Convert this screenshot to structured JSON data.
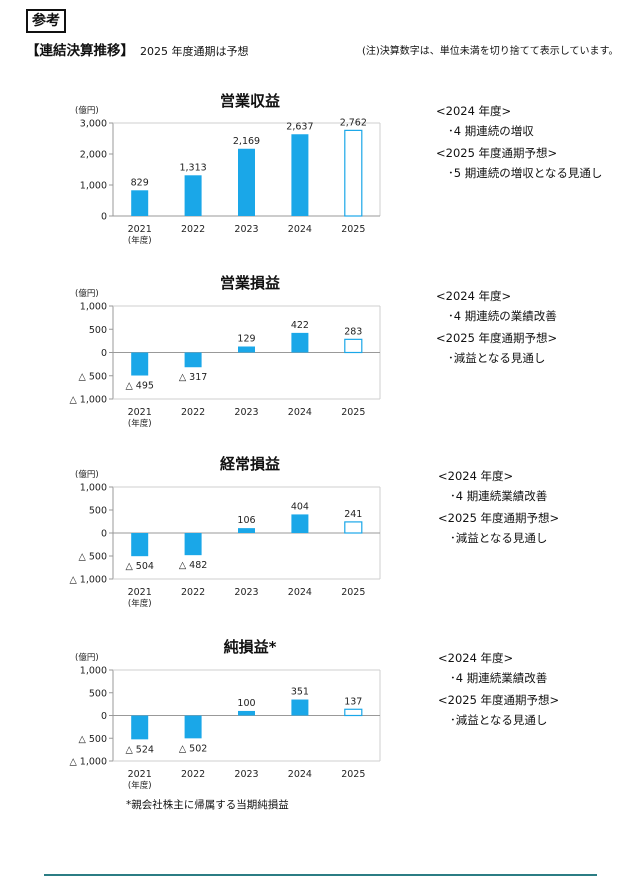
{
  "header": {
    "ref_label": "参考",
    "title": "【連結決算推移】",
    "subtitle": "2025 年度通期は予想",
    "note": "(注)決算数字は、単位未満を切り捨てて表示しています。"
  },
  "colors": {
    "bar": "#1aa7e8",
    "forecast_outline": "#1aa7e8",
    "axis": "#999999",
    "rule": "#2b7d84"
  },
  "chart_data": [
    {
      "type": "bar",
      "title": "営業収益",
      "unit": "(億円)",
      "categories": [
        "2021",
        "2022",
        "2023",
        "2024",
        "2025"
      ],
      "x_unit": "(年度)",
      "values": [
        829,
        1313,
        2169,
        2637,
        2762
      ],
      "value_labels": [
        "829",
        "1,313",
        "2,169",
        "2,637",
        "2,762"
      ],
      "forecast_index": 4,
      "ylim": [
        0,
        3000
      ],
      "yticks": [
        0,
        1000,
        2000,
        3000
      ],
      "ytick_labels": [
        "0",
        "1,000",
        "2,000",
        "3,000"
      ]
    },
    {
      "type": "bar",
      "title": "営業損益",
      "unit": "(億円)",
      "categories": [
        "2021",
        "2022",
        "2023",
        "2024",
        "2025"
      ],
      "x_unit": "(年度)",
      "values": [
        -495,
        -317,
        129,
        422,
        283
      ],
      "value_labels": [
        "△ 495",
        "△ 317",
        "129",
        "422",
        "283"
      ],
      "forecast_index": 4,
      "ylim": [
        -1000,
        1000
      ],
      "yticks": [
        -1000,
        -500,
        0,
        500,
        1000
      ],
      "ytick_labels": [
        "△ 1,000",
        "△ 500",
        "0",
        "500",
        "1,000"
      ]
    },
    {
      "type": "bar",
      "title": "経常損益",
      "unit": "(億円)",
      "categories": [
        "2021",
        "2022",
        "2023",
        "2024",
        "2025"
      ],
      "x_unit": "(年度)",
      "values": [
        -504,
        -482,
        106,
        404,
        241
      ],
      "value_labels": [
        "△ 504",
        "△ 482",
        "106",
        "404",
        "241"
      ],
      "forecast_index": 4,
      "ylim": [
        -1000,
        1000
      ],
      "yticks": [
        -1000,
        -500,
        0,
        500,
        1000
      ],
      "ytick_labels": [
        "△ 1,000",
        "△ 500",
        "0",
        "500",
        "1,000"
      ]
    },
    {
      "type": "bar",
      "title": "純損益*",
      "unit": "(億円)",
      "categories": [
        "2021",
        "2022",
        "2023",
        "2024",
        "2025"
      ],
      "x_unit": "(年度)",
      "values": [
        -524,
        -502,
        100,
        351,
        137
      ],
      "value_labels": [
        "△ 524",
        "△ 502",
        "100",
        "351",
        "137"
      ],
      "forecast_index": 4,
      "ylim": [
        -1000,
        1000
      ],
      "yticks": [
        -1000,
        -500,
        0,
        500,
        1000
      ],
      "ytick_labels": [
        "△ 1,000",
        "△ 500",
        "0",
        "500",
        "1,000"
      ]
    }
  ],
  "comments": [
    {
      "h1": "<2024 年度>",
      "i1": "･4 期連続の増収",
      "h2": "<2025 年度通期予想>",
      "i2": "･5 期連続の増収となる見通し"
    },
    {
      "h1": "<2024 年度>",
      "i1": "･4 期連続の業績改善",
      "h2": "<2025 年度通期予想>",
      "i2": "･減益となる見通し"
    },
    {
      "h1": "<2024 年度>",
      "i1": "･4 期連続業績改善",
      "h2": "<2025 年度通期予想>",
      "i2": "･減益となる見通し"
    },
    {
      "h1": "<2024 年度>",
      "i1": "･4 期連続業績改善",
      "h2": "<2025 年度通期予想>",
      "i2": "･減益となる見通し"
    }
  ],
  "footnote": "*親会社株主に帰属する当期純損益"
}
